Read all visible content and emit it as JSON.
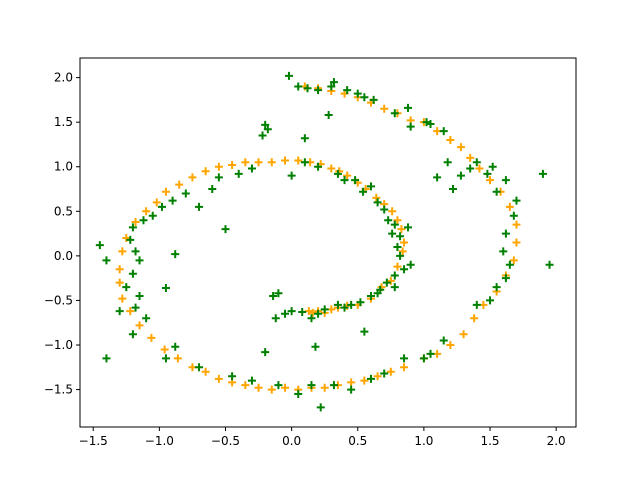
{
  "chart_data": {
    "type": "scatter",
    "title": "",
    "xlabel": "",
    "ylabel": "",
    "xlim": [
      -1.6,
      2.15
    ],
    "ylim": [
      -1.92,
      2.22
    ],
    "x_ticks": [
      -1.5,
      -1.0,
      -0.5,
      0.0,
      0.5,
      1.0,
      1.5,
      2.0
    ],
    "x_tick_labels": [
      "−1.5",
      "−1.0",
      "−0.5",
      "0.0",
      "0.5",
      "1.0",
      "1.5",
      "2.0"
    ],
    "y_ticks": [
      -1.5,
      -1.0,
      -0.5,
      0.0,
      0.5,
      1.0,
      1.5,
      2.0
    ],
    "y_tick_labels": [
      "−1.5",
      "−1.0",
      "−0.5",
      "0.0",
      "0.5",
      "1.0",
      "1.5",
      "2.0"
    ],
    "grid": false,
    "legend": "none",
    "marker": "plus",
    "series": [
      {
        "color": "#ffa500",
        "points": [
          [
            0.13,
            -0.62
          ],
          [
            0.16,
            -0.64
          ],
          [
            0.2,
            -0.62
          ],
          [
            0.25,
            -0.64
          ],
          [
            0.3,
            -0.6
          ],
          [
            0.35,
            -0.58
          ],
          [
            0.42,
            -0.56
          ],
          [
            0.5,
            -0.55
          ],
          [
            0.6,
            -0.48
          ],
          [
            0.68,
            -0.35
          ],
          [
            0.75,
            -0.28
          ],
          [
            0.8,
            -0.12
          ],
          [
            0.84,
            0.05
          ],
          [
            0.85,
            0.15
          ],
          [
            0.83,
            0.3
          ],
          [
            0.8,
            0.4
          ],
          [
            0.76,
            0.5
          ],
          [
            0.7,
            0.58
          ],
          [
            0.64,
            0.65
          ],
          [
            0.56,
            0.75
          ],
          [
            0.5,
            0.82
          ],
          [
            0.42,
            0.9
          ],
          [
            0.36,
            0.95
          ],
          [
            0.3,
            0.98
          ],
          [
            0.22,
            1.03
          ],
          [
            0.14,
            1.05
          ],
          [
            0.05,
            1.07
          ],
          [
            -0.05,
            1.07
          ],
          [
            -0.15,
            1.05
          ],
          [
            -0.25,
            1.05
          ],
          [
            -0.35,
            1.05
          ],
          [
            -0.45,
            1.02
          ],
          [
            -0.55,
            1.0
          ],
          [
            -0.65,
            0.95
          ],
          [
            -0.75,
            0.88
          ],
          [
            -0.85,
            0.8
          ],
          [
            -0.95,
            0.72
          ],
          [
            -1.02,
            0.6
          ],
          [
            -1.1,
            0.5
          ],
          [
            -1.18,
            0.38
          ],
          [
            -1.25,
            0.2
          ],
          [
            -1.28,
            0.05
          ],
          [
            -1.3,
            -0.15
          ],
          [
            -1.3,
            -0.3
          ],
          [
            -1.28,
            -0.48
          ],
          [
            -1.22,
            -0.62
          ],
          [
            -1.15,
            -0.78
          ],
          [
            -1.06,
            -0.92
          ],
          [
            -0.96,
            -1.05
          ],
          [
            -0.86,
            -1.15
          ],
          [
            -0.75,
            -1.25
          ],
          [
            -0.65,
            -1.3
          ],
          [
            -0.55,
            -1.38
          ],
          [
            -0.45,
            -1.42
          ],
          [
            -0.35,
            -1.45
          ],
          [
            -0.25,
            -1.48
          ],
          [
            -0.15,
            -1.5
          ],
          [
            -0.05,
            -1.48
          ],
          [
            0.05,
            -1.5
          ],
          [
            0.15,
            -1.48
          ],
          [
            0.25,
            -1.48
          ],
          [
            0.35,
            -1.45
          ],
          [
            0.45,
            -1.42
          ],
          [
            0.55,
            -1.4
          ],
          [
            0.65,
            -1.35
          ],
          [
            0.75,
            -1.3
          ],
          [
            0.85,
            -1.25
          ],
          [
            1.0,
            -1.15
          ],
          [
            1.1,
            -1.1
          ],
          [
            1.2,
            -1.0
          ],
          [
            1.3,
            -0.88
          ],
          [
            1.38,
            -0.7
          ],
          [
            1.45,
            -0.55
          ],
          [
            1.55,
            -0.4
          ],
          [
            1.62,
            -0.22
          ],
          [
            1.68,
            -0.05
          ],
          [
            1.7,
            0.15
          ],
          [
            1.7,
            0.35
          ],
          [
            1.65,
            0.55
          ],
          [
            1.58,
            0.72
          ],
          [
            1.5,
            0.85
          ],
          [
            1.42,
            0.98
          ],
          [
            1.35,
            1.1
          ],
          [
            1.28,
            1.22
          ],
          [
            1.2,
            1.3
          ],
          [
            1.1,
            1.4
          ],
          [
            1.0,
            1.5
          ],
          [
            0.9,
            1.52
          ],
          [
            0.8,
            1.6
          ],
          [
            0.7,
            1.65
          ],
          [
            0.6,
            1.72
          ],
          [
            0.5,
            1.78
          ],
          [
            0.4,
            1.82
          ],
          [
            0.3,
            1.85
          ],
          [
            0.2,
            1.88
          ],
          [
            0.1,
            1.9
          ]
        ]
      },
      {
        "color": "#008000",
        "points": [
          [
            -0.02,
            2.02
          ],
          [
            0.05,
            1.9
          ],
          [
            0.12,
            1.88
          ],
          [
            0.2,
            1.86
          ],
          [
            0.3,
            1.9
          ],
          [
            0.32,
            1.95
          ],
          [
            0.42,
            1.86
          ],
          [
            0.5,
            1.82
          ],
          [
            0.55,
            1.78
          ],
          [
            0.62,
            1.75
          ],
          [
            0.28,
            1.58
          ],
          [
            0.78,
            1.6
          ],
          [
            0.88,
            1.66
          ],
          [
            1.02,
            1.5
          ],
          [
            1.15,
            1.4
          ],
          [
            0.9,
            1.45
          ],
          [
            -0.18,
            1.42
          ],
          [
            -0.2,
            1.47
          ],
          [
            -0.22,
            1.35
          ],
          [
            0.1,
            1.32
          ],
          [
            0.1,
            1.05
          ],
          [
            0.2,
            1.0
          ],
          [
            0.35,
            0.92
          ],
          [
            0.4,
            0.85
          ],
          [
            0.48,
            0.85
          ],
          [
            0.54,
            0.72
          ],
          [
            0.6,
            0.78
          ],
          [
            0.65,
            0.6
          ],
          [
            0.7,
            0.52
          ],
          [
            0.73,
            0.4
          ],
          [
            0.78,
            0.35
          ],
          [
            0.76,
            0.25
          ],
          [
            0.82,
            0.22
          ],
          [
            0.88,
            0.32
          ],
          [
            0.8,
            0.1
          ],
          [
            0.82,
            0.0
          ],
          [
            0.9,
            -0.1
          ],
          [
            0.85,
            -0.15
          ],
          [
            0.78,
            -0.22
          ],
          [
            0.72,
            -0.3
          ],
          [
            0.67,
            -0.38
          ],
          [
            0.6,
            -0.45
          ],
          [
            0.52,
            -0.52
          ],
          [
            0.45,
            -0.55
          ],
          [
            0.4,
            -0.58
          ],
          [
            0.35,
            -0.55
          ],
          [
            0.55,
            -0.85
          ],
          [
            0.25,
            -0.6
          ],
          [
            0.2,
            -0.65
          ],
          [
            0.15,
            -0.7
          ],
          [
            0.08,
            -0.63
          ],
          [
            0.0,
            -0.62
          ],
          [
            -0.05,
            -0.65
          ],
          [
            -0.12,
            -0.7
          ],
          [
            -0.1,
            -0.42
          ],
          [
            -0.14,
            -0.45
          ],
          [
            0.18,
            -1.02
          ],
          [
            -0.2,
            -1.08
          ],
          [
            -0.5,
            0.3
          ],
          [
            -0.7,
            0.55
          ],
          [
            -0.8,
            0.7
          ],
          [
            -0.9,
            0.62
          ],
          [
            -0.98,
            0.55
          ],
          [
            -1.05,
            0.45
          ],
          [
            -1.12,
            0.4
          ],
          [
            -1.2,
            0.32
          ],
          [
            -1.22,
            0.18
          ],
          [
            -1.18,
            0.05
          ],
          [
            -1.15,
            -0.05
          ],
          [
            -1.2,
            -0.2
          ],
          [
            -1.25,
            -0.35
          ],
          [
            -1.15,
            -0.45
          ],
          [
            -1.3,
            -0.62
          ],
          [
            -1.18,
            -0.58
          ],
          [
            -1.2,
            -0.88
          ],
          [
            -1.1,
            -0.7
          ],
          [
            -1.45,
            0.12
          ],
          [
            -1.4,
            -0.05
          ],
          [
            -1.4,
            -1.15
          ],
          [
            -0.95,
            -0.36
          ],
          [
            -0.88,
            0.02
          ],
          [
            -0.88,
            -1.02
          ],
          [
            -0.95,
            -1.15
          ],
          [
            -0.7,
            -1.25
          ],
          [
            -0.45,
            -1.35
          ],
          [
            -0.3,
            -1.4
          ],
          [
            -0.1,
            -1.45
          ],
          [
            0.05,
            -1.55
          ],
          [
            0.15,
            -1.45
          ],
          [
            0.22,
            -1.7
          ],
          [
            0.32,
            -1.45
          ],
          [
            0.45,
            -1.5
          ],
          [
            0.6,
            -1.38
          ],
          [
            0.7,
            -1.32
          ],
          [
            0.85,
            -1.15
          ],
          [
            1.0,
            -1.15
          ],
          [
            1.05,
            -1.1
          ],
          [
            1.15,
            -0.95
          ],
          [
            1.4,
            -0.55
          ],
          [
            1.5,
            -0.5
          ],
          [
            1.55,
            -0.35
          ],
          [
            1.62,
            -0.25
          ],
          [
            1.65,
            -0.1
          ],
          [
            1.6,
            0.05
          ],
          [
            1.62,
            0.25
          ],
          [
            1.68,
            0.45
          ],
          [
            1.7,
            0.62
          ],
          [
            1.62,
            0.85
          ],
          [
            1.55,
            0.72
          ],
          [
            1.48,
            0.92
          ],
          [
            1.52,
            1.0
          ],
          [
            1.4,
            1.05
          ],
          [
            1.35,
            0.98
          ],
          [
            1.28,
            0.9
          ],
          [
            1.22,
            0.75
          ],
          [
            1.18,
            1.05
          ],
          [
            1.1,
            0.88
          ],
          [
            1.05,
            1.48
          ],
          [
            1.9,
            0.92
          ],
          [
            1.95,
            -0.1
          ],
          [
            0.78,
            -0.35
          ],
          [
            0.65,
            -0.42
          ],
          [
            0.0,
            0.9
          ],
          [
            -0.4,
            0.92
          ],
          [
            -0.55,
            0.88
          ],
          [
            -0.6,
            0.75
          ],
          [
            -0.3,
            0.98
          ]
        ]
      }
    ]
  }
}
